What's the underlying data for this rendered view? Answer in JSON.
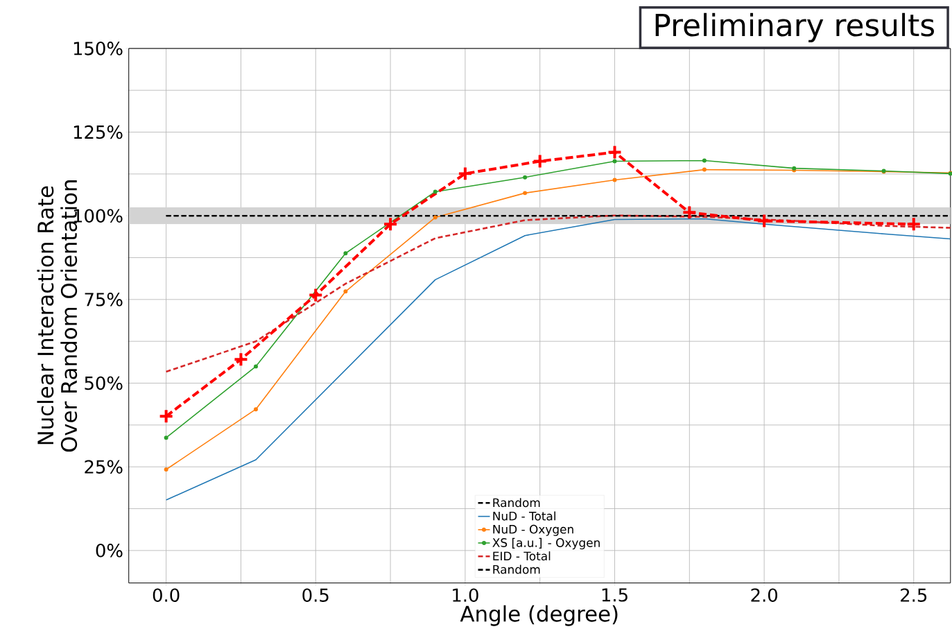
{
  "chart_data": {
    "type": "line",
    "xlabel": "Angle (degree)",
    "ylabel": "Nuclear Interaction Rate\nOver Random Orientation",
    "annotations": [
      "Preliminary results"
    ],
    "xlim": [
      -0.125,
      2.623
    ],
    "ylim": [
      -9.7,
      150
    ],
    "xticks": [
      {
        "value": 0,
        "label": "0.0"
      },
      {
        "value": 0.5,
        "label": "0.5"
      },
      {
        "value": 1,
        "label": "1.0"
      },
      {
        "value": 1.5,
        "label": "1.5"
      },
      {
        "value": 2,
        "label": "2.0"
      },
      {
        "value": 2.5,
        "label": "2.5"
      }
    ],
    "yticks": [
      {
        "value": 0,
        "label": "0%"
      },
      {
        "value": 25,
        "label": "25%"
      },
      {
        "value": 50,
        "label": "50%"
      },
      {
        "value": 75,
        "label": "75%"
      },
      {
        "value": 100,
        "label": "100%"
      },
      {
        "value": 125,
        "label": "125%"
      },
      {
        "value": 150,
        "label": "150%"
      }
    ],
    "grid": true,
    "legend": "bottom",
    "bands": [
      {
        "axis": "y",
        "from": 97.5,
        "to": 102.5,
        "color": "#d3d3d3"
      }
    ],
    "series": [
      {
        "name": "Random",
        "color": "#000000",
        "line_style": "dashed",
        "marker": "none",
        "x": [
          0,
          2.623
        ],
        "values": [
          100,
          100
        ]
      },
      {
        "name": "NuD - Total",
        "color": "#1f77b4",
        "line_style": "solid",
        "marker": "none",
        "x": [
          0,
          0.3,
          0.9,
          1.2,
          1.5,
          1.8,
          2.0,
          2.4,
          2.623
        ],
        "values": [
          15.1,
          27.1,
          80.9,
          94.1,
          98.9,
          99.1,
          97.5,
          94.6,
          93.1
        ]
      },
      {
        "name": "NuD - Oxygen",
        "color": "#ff7f0e",
        "line_style": "solid",
        "marker": "circle",
        "x": [
          0,
          0.3,
          0.6,
          0.9,
          1.2,
          1.5,
          1.8,
          2.1,
          2.4,
          2.623
        ],
        "values": [
          24.2,
          42.2,
          77.4,
          99.5,
          106.8,
          110.7,
          113.8,
          113.6,
          113.2,
          112.8
        ]
      },
      {
        "name": "XS [a.u.] - Oxygen",
        "color": "#2ca02c",
        "line_style": "solid",
        "marker": "circle",
        "x": [
          0,
          0.3,
          0.6,
          0.9,
          1.2,
          1.5,
          1.8,
          2.1,
          2.4,
          2.623
        ],
        "values": [
          33.7,
          55.0,
          88.8,
          107.2,
          111.5,
          116.3,
          116.5,
          114.2,
          113.4,
          112.6
        ]
      },
      {
        "name": "EID - Total",
        "color": "#d62728",
        "line_style": "dashed",
        "marker": "none",
        "x": [
          0,
          0.3,
          0.6,
          0.9,
          1.2,
          1.5,
          1.8,
          2.1,
          2.4,
          2.623
        ],
        "values": [
          53.4,
          62.5,
          79.7,
          93.3,
          98.7,
          100.1,
          99.7,
          98.5,
          97.0,
          96.4
        ]
      },
      {
        "name": "Random",
        "color": "#000000",
        "line_style": "dashed",
        "marker": "none",
        "x": [
          0,
          2.623
        ],
        "values": [
          100,
          100
        ]
      },
      {
        "color": "#ff0000",
        "line_style": "dashed",
        "marker": "cross",
        "x": [
          0,
          0.25,
          0.5,
          0.75,
          1.0,
          1.25,
          1.5,
          1.75,
          2.0,
          2.5
        ],
        "values": [
          40.1,
          57.1,
          76.3,
          97.5,
          112.6,
          116.3,
          119.0,
          101.0,
          98.5,
          97.5
        ]
      }
    ]
  }
}
